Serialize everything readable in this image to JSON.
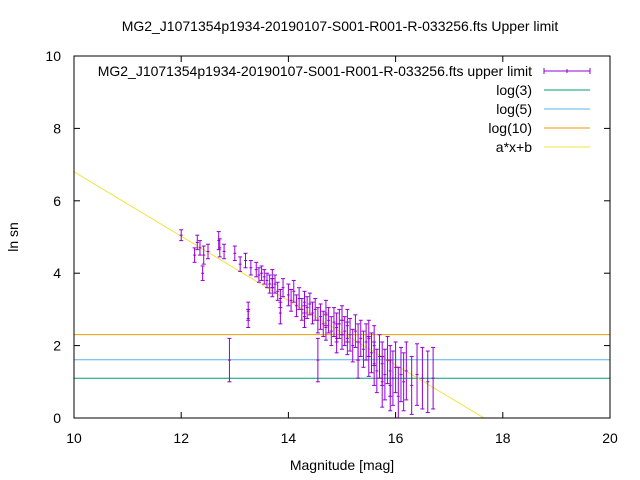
{
  "chart_data": {
    "type": "scatter",
    "title": "MG2_J1071354p1934-20190107-S001-R001-R-033256.fts Upper limit",
    "xlabel": "Magnitude [mag]",
    "ylabel": "ln sn",
    "xlim": [
      10,
      20
    ],
    "ylim": [
      0,
      10
    ],
    "x_ticks": [
      "10",
      "12",
      "14",
      "16",
      "18",
      "20"
    ],
    "y_ticks": [
      "0",
      "2",
      "4",
      "6",
      "8",
      "10"
    ],
    "grid": false,
    "legend_position": "top-right",
    "series": [
      {
        "name": "MG2_J1071354p1934-20190107-S001-R001-R-033256.fts upper limit",
        "kind": "errorbar",
        "color": "#9400d3",
        "points": [
          [
            12.0,
            5.05,
            0.15
          ],
          [
            12.25,
            4.5,
            0.2
          ],
          [
            12.3,
            4.85,
            0.2
          ],
          [
            12.35,
            4.7,
            0.2
          ],
          [
            12.4,
            4.0,
            0.2
          ],
          [
            12.42,
            4.5,
            0.25
          ],
          [
            12.5,
            4.6,
            0.2
          ],
          [
            12.7,
            4.9,
            0.25
          ],
          [
            12.72,
            4.7,
            0.25
          ],
          [
            12.8,
            4.6,
            0.2
          ],
          [
            12.9,
            1.6,
            0.6
          ],
          [
            13.0,
            4.55,
            0.2
          ],
          [
            13.1,
            4.25,
            0.2
          ],
          [
            13.2,
            4.35,
            0.2
          ],
          [
            13.25,
            2.95,
            0.25
          ],
          [
            13.25,
            2.75,
            0.25
          ],
          [
            13.3,
            4.15,
            0.2
          ],
          [
            13.4,
            4.1,
            0.2
          ],
          [
            13.45,
            3.95,
            0.2
          ],
          [
            13.5,
            4.0,
            0.2
          ],
          [
            13.55,
            3.9,
            0.2
          ],
          [
            13.6,
            3.8,
            0.2
          ],
          [
            13.65,
            3.7,
            0.25
          ],
          [
            13.7,
            3.85,
            0.25
          ],
          [
            13.7,
            3.6,
            0.25
          ],
          [
            13.75,
            3.7,
            0.25
          ],
          [
            13.8,
            3.5,
            0.25
          ],
          [
            13.85,
            3.3,
            0.25
          ],
          [
            13.85,
            2.9,
            0.3
          ],
          [
            13.9,
            3.6,
            0.25
          ],
          [
            14.0,
            3.4,
            0.3
          ],
          [
            14.05,
            3.25,
            0.3
          ],
          [
            14.1,
            3.5,
            0.3
          ],
          [
            14.15,
            3.1,
            0.3
          ],
          [
            14.2,
            3.3,
            0.3
          ],
          [
            14.25,
            3.0,
            0.3
          ],
          [
            14.3,
            3.2,
            0.3
          ],
          [
            14.3,
            2.8,
            0.3
          ],
          [
            14.35,
            3.05,
            0.3
          ],
          [
            14.4,
            3.15,
            0.3
          ],
          [
            14.45,
            2.9,
            0.3
          ],
          [
            14.5,
            3.0,
            0.3
          ],
          [
            14.55,
            2.7,
            0.35
          ],
          [
            14.55,
            1.6,
            0.6
          ],
          [
            14.6,
            2.8,
            0.35
          ],
          [
            14.65,
            2.6,
            0.35
          ],
          [
            14.7,
            2.9,
            0.35
          ],
          [
            14.7,
            2.5,
            0.35
          ],
          [
            14.75,
            2.7,
            0.35
          ],
          [
            14.8,
            2.4,
            0.4
          ],
          [
            14.85,
            2.65,
            0.4
          ],
          [
            14.9,
            2.5,
            0.4
          ],
          [
            14.9,
            2.2,
            0.4
          ],
          [
            14.95,
            2.6,
            0.4
          ],
          [
            15.0,
            2.3,
            0.4
          ],
          [
            15.0,
            2.7,
            0.4
          ],
          [
            15.05,
            2.4,
            0.4
          ],
          [
            15.1,
            2.2,
            0.45
          ],
          [
            15.1,
            2.55,
            0.45
          ],
          [
            15.15,
            2.3,
            0.45
          ],
          [
            15.2,
            2.0,
            0.45
          ],
          [
            15.25,
            2.4,
            0.45
          ],
          [
            15.3,
            2.1,
            0.5
          ],
          [
            15.3,
            1.6,
            0.5
          ],
          [
            15.35,
            2.2,
            0.5
          ],
          [
            15.4,
            1.9,
            0.5
          ],
          [
            15.45,
            2.1,
            0.5
          ],
          [
            15.5,
            1.7,
            0.55
          ],
          [
            15.5,
            2.2,
            0.5
          ],
          [
            15.55,
            1.8,
            0.55
          ],
          [
            15.6,
            1.5,
            0.6
          ],
          [
            15.6,
            2.0,
            0.55
          ],
          [
            15.65,
            1.3,
            0.6
          ],
          [
            15.7,
            1.7,
            0.6
          ],
          [
            15.75,
            1.0,
            0.7
          ],
          [
            15.75,
            1.5,
            0.6
          ],
          [
            15.8,
            1.2,
            0.7
          ],
          [
            15.85,
            1.6,
            0.65
          ],
          [
            15.9,
            0.9,
            0.7
          ],
          [
            15.9,
            1.3,
            0.7
          ],
          [
            15.95,
            1.1,
            0.75
          ],
          [
            16.0,
            1.4,
            0.7
          ],
          [
            16.05,
            0.6,
            0.8
          ],
          [
            16.1,
            1.2,
            0.75
          ],
          [
            16.15,
            1.0,
            0.8
          ],
          [
            16.2,
            1.3,
            0.8
          ],
          [
            16.3,
            0.9,
            0.8
          ],
          [
            16.4,
            1.2,
            0.85
          ],
          [
            16.5,
            1.1,
            0.85
          ],
          [
            16.6,
            1.0,
            0.85
          ],
          [
            16.7,
            1.1,
            0.85
          ]
        ]
      },
      {
        "name": "log(3)",
        "kind": "hline",
        "value": 1.0986,
        "color": "#009e73"
      },
      {
        "name": "log(5)",
        "kind": "hline",
        "value": 1.6094,
        "color": "#56b4e9"
      },
      {
        "name": "log(10)",
        "kind": "hline",
        "value": 2.3026,
        "color": "#e69f00"
      },
      {
        "name": "a*x+b",
        "kind": "line",
        "a": -0.889,
        "b": 15.69,
        "color": "#f0e442"
      }
    ]
  }
}
